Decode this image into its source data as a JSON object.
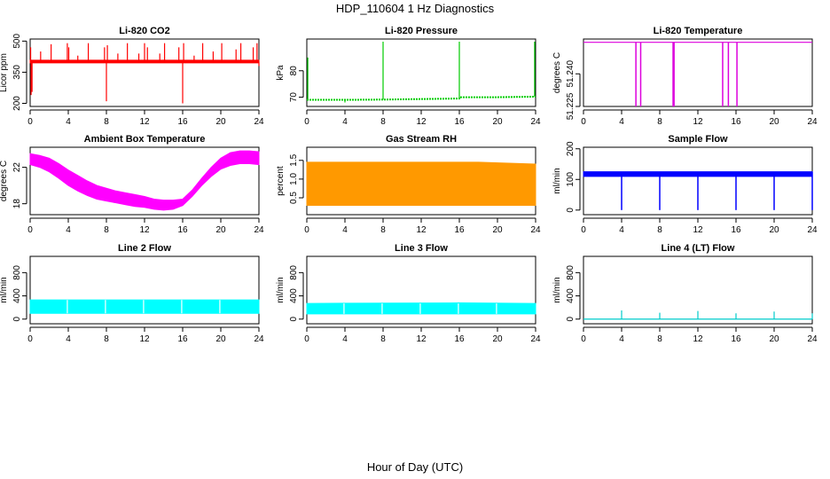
{
  "figure": {
    "title": "HDP_110604  1 Hz Diagnostics",
    "xlabel": "Hour of Day (UTC)"
  },
  "chart_data": [
    {
      "type": "line",
      "title": "Li-820 CO2",
      "ylabel": "Licor ppm",
      "xlabel": "",
      "color": "#ff0000",
      "xlim": [
        0,
        24
      ],
      "ylim": [
        185,
        510
      ],
      "xticks": [
        0,
        4,
        8,
        12,
        16,
        20,
        24
      ],
      "yticks": [
        200,
        350,
        500
      ],
      "band": {
        "lo": [
          [
            0,
            395
          ],
          [
            24,
            395
          ]
        ],
        "hi": [
          [
            0,
            408
          ],
          [
            24,
            408
          ]
        ]
      },
      "spikes": [
        [
          0.05,
          470
        ],
        [
          0.1,
          240
        ],
        [
          0.2,
          255
        ],
        [
          1.1,
          450
        ],
        [
          2.2,
          485
        ],
        [
          3.9,
          490
        ],
        [
          4.05,
          470
        ],
        [
          5.0,
          430
        ],
        [
          6.1,
          490
        ],
        [
          7.8,
          470
        ],
        [
          8.0,
          210
        ],
        [
          8.1,
          480
        ],
        [
          9.2,
          440
        ],
        [
          10.2,
          490
        ],
        [
          11.4,
          440
        ],
        [
          12.0,
          490
        ],
        [
          12.3,
          470
        ],
        [
          13.6,
          440
        ],
        [
          14.1,
          490
        ],
        [
          15.6,
          470
        ],
        [
          16.0,
          200
        ],
        [
          16.1,
          490
        ],
        [
          17.2,
          430
        ],
        [
          18.1,
          490
        ],
        [
          19.2,
          450
        ],
        [
          20.1,
          490
        ],
        [
          21.6,
          460
        ],
        [
          22.1,
          490
        ],
        [
          23.4,
          470
        ],
        [
          23.8,
          490
        ],
        [
          24.0,
          380
        ]
      ]
    },
    {
      "type": "line",
      "title": "Li-820 Pressure",
      "ylabel": "kPa",
      "xlabel": "",
      "color": "#00cc00",
      "xlim": [
        0,
        24
      ],
      "ylim": [
        66.5,
        92
      ],
      "xticks": [
        0,
        4,
        8,
        12,
        16,
        20,
        24
      ],
      "yticks": [
        70,
        80
      ],
      "series": [
        [
          0,
          69.0
        ],
        [
          4,
          69.0
        ],
        [
          8,
          69.1
        ],
        [
          12,
          69.3
        ],
        [
          16,
          69.5
        ],
        [
          16.05,
          70.0
        ],
        [
          20,
          70.0
        ],
        [
          24,
          70.2
        ]
      ],
      "spikes": [
        [
          0.1,
          85
        ],
        [
          4,
          68
        ],
        [
          8,
          91
        ],
        [
          16,
          91
        ],
        [
          23.9,
          91
        ]
      ]
    },
    {
      "type": "line",
      "title": "Li-820 Temperature",
      "ylabel": "degrees C",
      "xlabel": "",
      "color": "#dd00dd",
      "xlim": [
        0,
        24
      ],
      "ylim": [
        51.225,
        51.256
      ],
      "xticks": [
        0,
        4,
        8,
        12,
        16,
        20,
        24
      ],
      "yticks": [
        51.225,
        51.24
      ],
      "ytick_labels": [
        "51.225",
        "51.240"
      ],
      "baseline": 51.2545,
      "dips": [
        5.5,
        6.0,
        9.4,
        9.5,
        14.6,
        15.2,
        16.1
      ]
    },
    {
      "type": "area",
      "title": "Ambient Box Temperature",
      "ylabel": "degrees C",
      "xlabel": "",
      "color": "#ff00ff",
      "xlim": [
        0,
        24
      ],
      "ylim": [
        16.8,
        24.2
      ],
      "xticks": [
        0,
        4,
        8,
        12,
        16,
        20,
        24
      ],
      "yticks": [
        18,
        22
      ],
      "upper": [
        [
          0,
          23.5
        ],
        [
          1,
          23.3
        ],
        [
          2,
          23.0
        ],
        [
          3,
          22.4
        ],
        [
          4,
          21.7
        ],
        [
          5,
          21.1
        ],
        [
          6,
          20.5
        ],
        [
          7,
          20.0
        ],
        [
          8,
          19.7
        ],
        [
          9,
          19.4
        ],
        [
          10,
          19.2
        ],
        [
          11,
          19.0
        ],
        [
          12,
          18.8
        ],
        [
          13,
          18.5
        ],
        [
          14,
          18.4
        ],
        [
          15,
          18.4
        ],
        [
          16,
          18.5
        ],
        [
          17,
          19.5
        ],
        [
          18,
          20.8
        ],
        [
          19,
          22.0
        ],
        [
          20,
          23.0
        ],
        [
          21,
          23.6
        ],
        [
          22,
          23.8
        ],
        [
          23,
          23.8
        ],
        [
          24,
          23.7
        ]
      ],
      "lower": [
        [
          0,
          22.3
        ],
        [
          1,
          22.0
        ],
        [
          2,
          21.5
        ],
        [
          3,
          20.8
        ],
        [
          4,
          20.0
        ],
        [
          5,
          19.4
        ],
        [
          6,
          18.9
        ],
        [
          7,
          18.5
        ],
        [
          8,
          18.3
        ],
        [
          9,
          18.1
        ],
        [
          10,
          17.9
        ],
        [
          11,
          17.7
        ],
        [
          12,
          17.6
        ],
        [
          13,
          17.4
        ],
        [
          14,
          17.3
        ],
        [
          15,
          17.4
        ],
        [
          16,
          17.8
        ],
        [
          17,
          18.8
        ],
        [
          18,
          20.0
        ],
        [
          19,
          21.0
        ],
        [
          20,
          21.8
        ],
        [
          21,
          22.2
        ],
        [
          22,
          22.4
        ],
        [
          23,
          22.4
        ],
        [
          24,
          22.3
        ]
      ]
    },
    {
      "type": "area",
      "title": "Gas Stream RH",
      "ylabel": "percent",
      "xlabel": "",
      "color": "#ff9900",
      "xlim": [
        0,
        24
      ],
      "ylim": [
        0.05,
        1.85
      ],
      "xticks": [
        0,
        4,
        8,
        12,
        16,
        20,
        24
      ],
      "yticks": [
        0.5,
        1.0,
        1.5
      ],
      "ytick_labels": [
        "0.5",
        "1.0",
        "1.5"
      ],
      "upper": [
        [
          0,
          1.45
        ],
        [
          6,
          1.45
        ],
        [
          12,
          1.45
        ],
        [
          18,
          1.45
        ],
        [
          24,
          1.4
        ]
      ],
      "lower": [
        [
          0,
          0.3
        ],
        [
          6,
          0.3
        ],
        [
          12,
          0.3
        ],
        [
          18,
          0.3
        ],
        [
          24,
          0.3
        ]
      ]
    },
    {
      "type": "line",
      "title": "Sample Flow",
      "ylabel": "ml/min",
      "xlabel": "",
      "color": "#0000ff",
      "xlim": [
        0,
        24
      ],
      "ylim": [
        -15,
        205
      ],
      "xticks": [
        0,
        4,
        8,
        12,
        16,
        20,
        24
      ],
      "yticks": [
        0,
        100,
        200
      ],
      "band": {
        "lo": [
          [
            0,
            110
          ],
          [
            24,
            110
          ]
        ],
        "hi": [
          [
            0,
            125
          ],
          [
            24,
            125
          ]
        ]
      },
      "dips": [
        4,
        8,
        12,
        16,
        20,
        24
      ]
    },
    {
      "type": "area",
      "title": "Line 2 Flow",
      "ylabel": "ml/min",
      "xlabel": "",
      "color": "#00ffff",
      "xlim": [
        0,
        24
      ],
      "ylim": [
        -80,
        1080
      ],
      "xticks": [
        0,
        4,
        8,
        12,
        16,
        20,
        24
      ],
      "yticks": [
        0,
        400,
        800
      ],
      "upper": [
        [
          0,
          330
        ],
        [
          24,
          330
        ]
      ],
      "lower": [
        [
          0,
          100
        ],
        [
          24,
          100
        ]
      ],
      "gaps": [
        3.9,
        7.9,
        11.9,
        15.9,
        19.9
      ]
    },
    {
      "type": "area",
      "title": "Line 3 Flow",
      "ylabel": "ml/min",
      "xlabel": "",
      "color": "#00ffff",
      "xlim": [
        0,
        24
      ],
      "ylim": [
        -80,
        1080
      ],
      "xticks": [
        0,
        4,
        8,
        12,
        16,
        20,
        24
      ],
      "yticks": [
        0,
        400,
        800
      ],
      "upper": [
        [
          0,
          270
        ],
        [
          16,
          280
        ],
        [
          24,
          270
        ]
      ],
      "lower": [
        [
          0,
          90
        ],
        [
          24,
          90
        ]
      ],
      "gaps": [
        3.9,
        7.9,
        11.9,
        15.9,
        19.9
      ]
    },
    {
      "type": "line",
      "title": "Line 4 (LT) Flow",
      "ylabel": "ml/min",
      "xlabel": "",
      "color": "#00cccc",
      "xlim": [
        0,
        24
      ],
      "ylim": [
        -80,
        1080
      ],
      "xticks": [
        0,
        4,
        8,
        12,
        16,
        20,
        24
      ],
      "yticks": [
        0,
        400,
        800
      ],
      "baseline": 0,
      "spikes": [
        [
          4,
          150
        ],
        [
          8,
          110
        ],
        [
          12,
          140
        ],
        [
          16,
          100
        ],
        [
          20,
          130
        ],
        [
          24,
          100
        ]
      ]
    }
  ]
}
